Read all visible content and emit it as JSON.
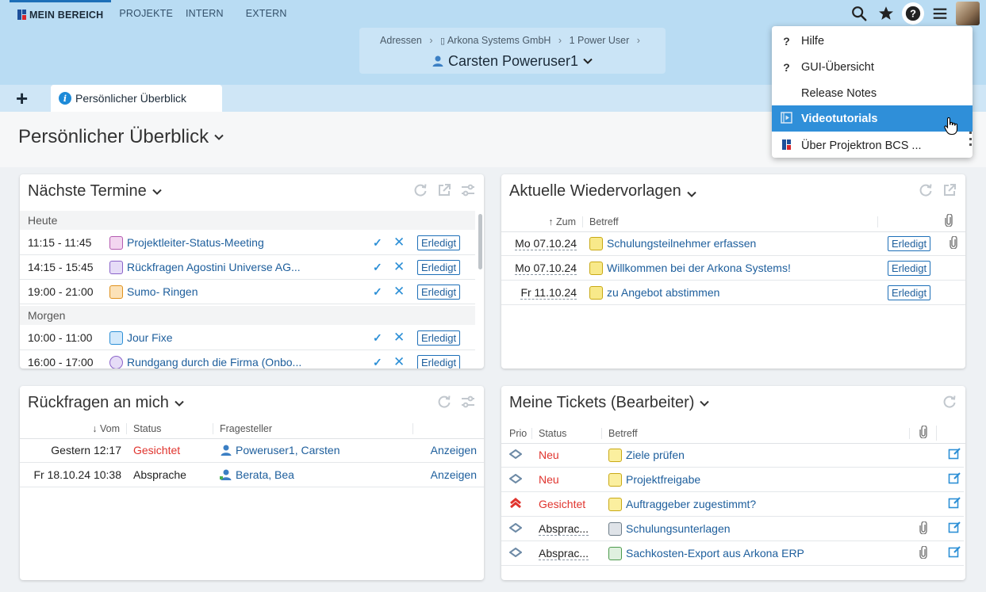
{
  "nav": {
    "items": [
      "MEIN BEREICH",
      "PROJEKTE",
      "INTERN",
      "EXTERN"
    ]
  },
  "header": {
    "breadcrumb": [
      "Adressen",
      "Arkona Systems GmbH",
      "1 Power User"
    ],
    "person": "Carsten Poweruser1"
  },
  "tabs": {
    "add": "+",
    "active": "Persönlicher Überblick"
  },
  "page": {
    "title": "Persönlicher Überblick"
  },
  "menu": {
    "items": [
      {
        "icon": "?",
        "label": "Hilfe"
      },
      {
        "icon": "?",
        "label": "GUI-Übersicht"
      },
      {
        "icon": "",
        "label": "Release Notes"
      },
      {
        "icon": "video-icon",
        "label": "Videotutorials"
      },
      {
        "icon": "projektron-logo-icon",
        "label": "Über Projektron BCS ..."
      }
    ]
  },
  "termine": {
    "title": "Nächste Termine",
    "sections": [
      {
        "label": "Heute",
        "rows": [
          {
            "time": "11:15 - 11:45",
            "title": "Projektleiter-Status-Meeting",
            "action": "Erledigt"
          },
          {
            "time": "14:15 - 15:45",
            "title": "Rückfragen Agostini Universe AG...",
            "action": "Erledigt"
          },
          {
            "time": "19:00 - 21:00",
            "title": "Sumo- Ringen",
            "action": "Erledigt"
          }
        ]
      },
      {
        "label": "Morgen",
        "rows": [
          {
            "time": "10:00 - 11:00",
            "title": "Jour Fixe",
            "action": "Erledigt"
          },
          {
            "time": "16:00 - 17:00",
            "title": "Rundgang durch die Firma (Onbo...",
            "action": "Erledigt"
          }
        ]
      }
    ]
  },
  "wiedervorlagen": {
    "title": "Aktuelle Wiedervorlagen",
    "headers": {
      "zum": "Zum",
      "betreff": "Betreff"
    },
    "rows": [
      {
        "date": "Mo 07.10.24",
        "subject": "Schulungsteilnehmer erfassen",
        "action": "Erledigt"
      },
      {
        "date": "Mo 07.10.24",
        "subject": "Willkommen bei der Arkona Systems!",
        "action": "Erledigt"
      },
      {
        "date": "Fr 11.10.24",
        "subject": "zu Angebot abstimmen",
        "action": "Erledigt"
      }
    ]
  },
  "rueckfragen": {
    "title": "Rückfragen an mich",
    "headers": {
      "vom": "Vom",
      "status": "Status",
      "fragesteller": "Fragesteller"
    },
    "rows": [
      {
        "vom": "Gestern 12:17",
        "status": "Gesichtet",
        "person": "Poweruser1, Carsten",
        "action": "Anzeigen"
      },
      {
        "vom": "Fr 18.10.24 10:38",
        "status": "Absprache",
        "person": "Berata, Bea",
        "action": "Anzeigen"
      }
    ]
  },
  "tickets": {
    "title": "Meine Tickets (Bearbeiter)",
    "headers": {
      "prio": "Prio",
      "status": "Status",
      "betreff": "Betreff"
    },
    "rows": [
      {
        "status": "Neu",
        "subject": "Ziele prüfen"
      },
      {
        "status": "Neu",
        "subject": "Projektfreigabe"
      },
      {
        "status": "Gesichtet",
        "subject": "Auftraggeber zugestimmt?"
      },
      {
        "status": "Absprac...",
        "subject": "Schulungsunterlagen"
      },
      {
        "status": "Absprac...",
        "subject": "Sachkosten-Export aus Arkona ERP"
      }
    ]
  },
  "colors": {
    "header_bg": "#b9dcf3",
    "accent": "#1d6fb8",
    "link": "#1d5e9c",
    "status_red": "#e0342e",
    "menu_selected": "#2f8fd9"
  }
}
